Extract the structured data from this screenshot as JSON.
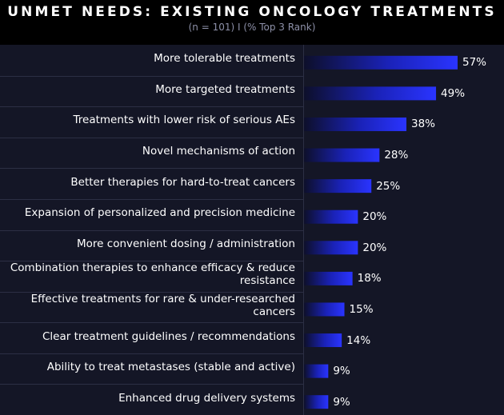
{
  "chart_data": {
    "type": "bar",
    "orientation": "horizontal",
    "title": "UNMET NEEDS: EXISTING ONCOLOGY TREATMENTS",
    "subtitle": "(n = 101) I (% Top 3 Rank)",
    "categories": [
      "More tolerable treatments",
      "More targeted treatments",
      "Treatments with lower risk of serious AEs",
      "Novel mechanisms of action",
      "Better therapies for hard-to-treat cancers",
      "Expansion of personalized and precision medicine",
      "More convenient dosing / administration",
      "Combination therapies to enhance efficacy & reduce resistance",
      "Effective treatments for rare & under-researched cancers",
      "Clear treatment guidelines / recommendations",
      "Ability to treat metastases (stable and active)",
      "Enhanced drug delivery systems"
    ],
    "values": [
      57,
      49,
      38,
      28,
      25,
      20,
      20,
      18,
      15,
      14,
      9,
      9
    ],
    "value_labels": [
      "57%",
      "49%",
      "38%",
      "28%",
      "25%",
      "20%",
      "20%",
      "18%",
      "15%",
      "14%",
      "9%",
      "9%"
    ],
    "xlim": [
      0,
      60
    ],
    "unit": "%",
    "colors": {
      "background": "#000000",
      "plot_background": "#141626",
      "bar_start": "#0d0f2a",
      "bar_end": "#2a34ff",
      "gridline": "#2c2f44",
      "text": "#ffffff",
      "subtitle": "#8d90a8"
    }
  }
}
